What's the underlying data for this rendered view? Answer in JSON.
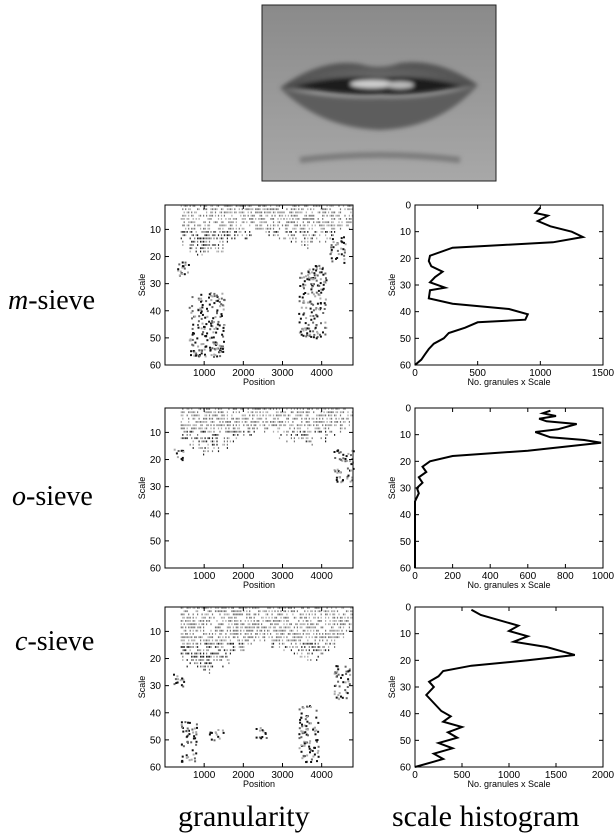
{
  "photo": {
    "description_icon": "lips-photo"
  },
  "rows": [
    {
      "label_italic": "m",
      "label_rest": "-sieve"
    },
    {
      "label_italic": "o",
      "label_rest": "-sieve"
    },
    {
      "label_italic": "c",
      "label_rest": "-sieve"
    }
  ],
  "bottom_labels": {
    "left": "granularity",
    "right": "scale histogram"
  },
  "chart_data": [
    {
      "type": "heatmap",
      "panel": "m-sieve granularity",
      "xlabel": "Position",
      "ylabel": "Scale",
      "xticks": [
        1000,
        2000,
        3000,
        4000
      ],
      "yticks": [
        10,
        20,
        30,
        40,
        50,
        60
      ],
      "xlim": [
        0,
        4800
      ],
      "ylim": [
        60,
        1
      ],
      "density_profile": {
        "top_band_scales": [
          1,
          18
        ],
        "lower_clusters": [
          {
            "x": [
              600,
              1500
            ],
            "y": [
              33,
              57
            ]
          },
          {
            "x": [
              3400,
              4100
            ],
            "y": [
              23,
              50
            ]
          },
          {
            "x": [
              300,
              600
            ],
            "y": [
              20,
              27
            ]
          },
          {
            "x": [
              4200,
              4600
            ],
            "y": [
              12,
              22
            ]
          }
        ]
      }
    },
    {
      "type": "line",
      "panel": "m-sieve scale histogram",
      "xlabel": "No. granules x Scale",
      "ylabel": "Scale",
      "xticks": [
        0,
        500,
        1000,
        1500
      ],
      "yticks": [
        0,
        10,
        20,
        30,
        40,
        50,
        60
      ],
      "xlim": [
        0,
        1500
      ],
      "ylim": [
        0,
        60
      ],
      "series": [
        {
          "x": [
            1000,
            960,
            1060,
            980,
            1080,
            1250,
            1340,
            1100,
            700,
            300,
            120,
            110,
            130,
            220,
            160,
            120,
            240,
            120,
            110,
            300,
            750,
            900,
            880,
            500,
            400,
            270,
            230,
            150,
            110,
            80,
            50,
            0
          ],
          "y": [
            1,
            3,
            4,
            6,
            8,
            10,
            12,
            14,
            15,
            16,
            19,
            21,
            23,
            25,
            27,
            29,
            31,
            32,
            35,
            37,
            39,
            41,
            43,
            44,
            46,
            48,
            50,
            52,
            54,
            56,
            58,
            60
          ]
        }
      ]
    },
    {
      "type": "heatmap",
      "panel": "o-sieve granularity",
      "xlabel": "Position",
      "ylabel": "Scale",
      "xticks": [
        1000,
        2000,
        3000,
        4000
      ],
      "yticks": [
        10,
        20,
        30,
        40,
        50,
        60
      ],
      "xlim": [
        0,
        4800
      ],
      "ylim": [
        60,
        1
      ],
      "density_profile": {
        "top_band_scales": [
          1,
          16
        ],
        "lower_clusters": [
          {
            "x": [
              4300,
              4800
            ],
            "y": [
              16,
              28
            ]
          },
          {
            "x": [
              200,
              500
            ],
            "y": [
              16,
              20
            ]
          }
        ]
      }
    },
    {
      "type": "line",
      "panel": "o-sieve scale histogram",
      "xlabel": "No. granules x Scale",
      "ylabel": "Scale",
      "xticks": [
        0,
        200,
        400,
        600,
        800,
        1000
      ],
      "yticks": [
        0,
        10,
        20,
        30,
        40,
        50,
        60
      ],
      "xlim": [
        0,
        1000
      ],
      "ylim": [
        0,
        60
      ],
      "series": [
        {
          "x": [
            720,
            680,
            750,
            660,
            700,
            860,
            760,
            640,
            720,
            900,
            990,
            600,
            200,
            80,
            40,
            60,
            20,
            40,
            10,
            20,
            0,
            0,
            0,
            0
          ],
          "y": [
            1,
            2,
            3,
            4,
            5,
            6,
            8,
            9,
            11,
            12,
            13,
            16,
            18,
            20,
            22,
            24,
            26,
            28,
            30,
            32,
            35,
            40,
            50,
            60
          ]
        }
      ]
    },
    {
      "type": "heatmap",
      "panel": "c-sieve granularity",
      "xlabel": "Position",
      "ylabel": "Scale",
      "xticks": [
        1000,
        2000,
        3000,
        4000
      ],
      "yticks": [
        10,
        20,
        30,
        40,
        50,
        60
      ],
      "xlim": [
        0,
        4800
      ],
      "ylim": [
        60,
        1
      ],
      "density_profile": {
        "top_band_scales": [
          1,
          24
        ],
        "lower_clusters": [
          {
            "x": [
              400,
              800
            ],
            "y": [
              43,
              58
            ]
          },
          {
            "x": [
              1100,
              1500
            ],
            "y": [
              46,
              50
            ]
          },
          {
            "x": [
              2300,
              2600
            ],
            "y": [
              45,
              50
            ]
          },
          {
            "x": [
              3400,
              3900
            ],
            "y": [
              37,
              58
            ]
          },
          {
            "x": [
              4300,
              4700
            ],
            "y": [
              22,
              35
            ]
          },
          {
            "x": [
              200,
              500
            ],
            "y": [
              24,
              30
            ]
          }
        ]
      }
    },
    {
      "type": "line",
      "panel": "c-sieve scale histogram",
      "xlabel": "No. granules x Scale",
      "ylabel": "Scale",
      "xticks": [
        0,
        500,
        1000,
        1500,
        2000
      ],
      "yticks": [
        0,
        10,
        20,
        30,
        40,
        50,
        60
      ],
      "xlim": [
        0,
        2000
      ],
      "ylim": [
        0,
        60
      ],
      "series": [
        {
          "x": [
            600,
            700,
            900,
            1100,
            1000,
            1200,
            1050,
            1400,
            1600,
            1700,
            1200,
            600,
            300,
            250,
            150,
            200,
            120,
            200,
            280,
            380,
            300,
            500,
            350,
            450,
            250,
            400,
            200,
            300,
            200,
            0
          ],
          "y": [
            1,
            3,
            5,
            7,
            9,
            11,
            13,
            15,
            17,
            18,
            20,
            22,
            24,
            26,
            28,
            30,
            33,
            36,
            39,
            41,
            43,
            45,
            47,
            49,
            51,
            53,
            55,
            57,
            58,
            60
          ]
        }
      ]
    }
  ]
}
